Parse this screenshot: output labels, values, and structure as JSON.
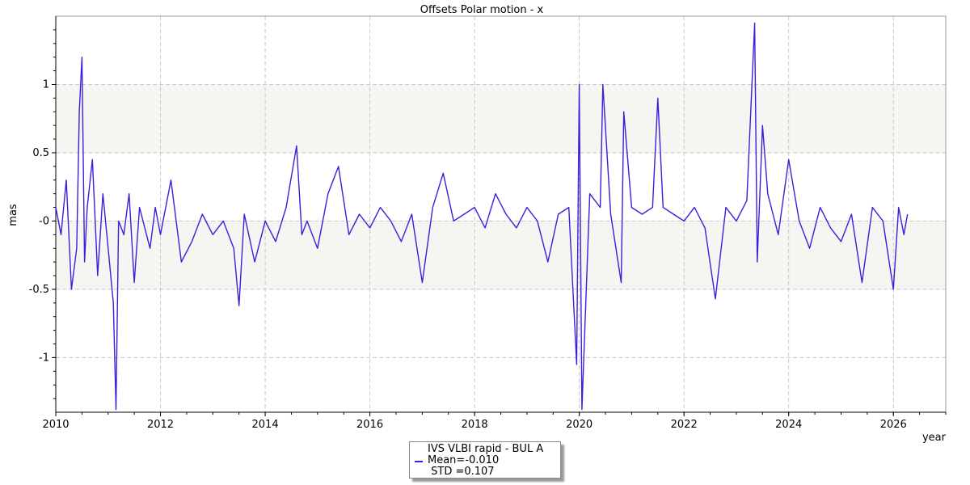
{
  "chart_data": {
    "type": "line",
    "title": "Offsets Polar motion - x",
    "xlabel": "year",
    "ylabel": "mas",
    "xlim": [
      2010,
      2027
    ],
    "ylim": [
      -1.4,
      1.5
    ],
    "x_ticks": [
      2010,
      2012,
      2014,
      2016,
      2018,
      2020,
      2022,
      2024,
      2026
    ],
    "x_tick_labels": [
      "2010",
      "2012",
      "2014",
      "2016",
      "2018",
      "2020",
      "2022",
      "2024",
      "2026"
    ],
    "y_ticks": [
      -1,
      -0.5,
      0,
      0.5,
      1
    ],
    "y_tick_labels": [
      "-1",
      "-0.5",
      "-0",
      "0.5",
      "1"
    ],
    "band_ranges": [
      [
        0.5,
        1.0
      ],
      [
        -0.5,
        0.0
      ]
    ],
    "band_color": "#f5f5f2",
    "grid": true,
    "legend_position": "bottom-center",
    "series": [
      {
        "name": "IVS VLBI rapid - BUL A",
        "color": "#3a1fdc",
        "mean_label": "Mean=-0.010",
        "std_label": " STD =0.107",
        "x": [
          2010.0,
          2010.1,
          2010.2,
          2010.3,
          2010.4,
          2010.45,
          2010.5,
          2010.55,
          2010.6,
          2010.7,
          2010.8,
          2010.9,
          2011.0,
          2011.1,
          2011.15,
          2011.2,
          2011.3,
          2011.4,
          2011.5,
          2011.6,
          2011.7,
          2011.8,
          2011.9,
          2012.0,
          2012.2,
          2012.4,
          2012.6,
          2012.8,
          2013.0,
          2013.2,
          2013.4,
          2013.5,
          2013.6,
          2013.8,
          2014.0,
          2014.2,
          2014.4,
          2014.6,
          2014.7,
          2014.8,
          2015.0,
          2015.2,
          2015.4,
          2015.6,
          2015.8,
          2016.0,
          2016.2,
          2016.4,
          2016.6,
          2016.8,
          2017.0,
          2017.2,
          2017.4,
          2017.6,
          2017.8,
          2018.0,
          2018.2,
          2018.4,
          2018.6,
          2018.8,
          2019.0,
          2019.2,
          2019.4,
          2019.6,
          2019.8,
          2019.95,
          2020.0,
          2020.05,
          2020.2,
          2020.4,
          2020.45,
          2020.6,
          2020.8,
          2020.85,
          2021.0,
          2021.2,
          2021.4,
          2021.5,
          2021.6,
          2021.8,
          2022.0,
          2022.2,
          2022.4,
          2022.6,
          2022.8,
          2023.0,
          2023.2,
          2023.35,
          2023.4,
          2023.5,
          2023.6,
          2023.8,
          2024.0,
          2024.2,
          2024.4,
          2024.6,
          2024.8,
          2025.0,
          2025.2,
          2025.4,
          2025.6,
          2025.8,
          2026.0,
          2026.1,
          2026.2,
          2026.27
        ],
        "y": [
          0.1,
          -0.1,
          0.3,
          -0.5,
          -0.2,
          0.8,
          1.2,
          -0.3,
          0.1,
          0.45,
          -0.4,
          0.2,
          -0.2,
          -0.6,
          -1.38,
          0.0,
          -0.1,
          0.2,
          -0.45,
          0.1,
          -0.05,
          -0.2,
          0.1,
          -0.1,
          0.3,
          -0.3,
          -0.15,
          0.05,
          -0.1,
          0.0,
          -0.2,
          -0.62,
          0.05,
          -0.3,
          0.0,
          -0.15,
          0.1,
          0.55,
          -0.1,
          0.0,
          -0.2,
          0.2,
          0.4,
          -0.1,
          0.05,
          -0.05,
          0.1,
          0.0,
          -0.15,
          0.05,
          -0.45,
          0.1,
          0.35,
          0.0,
          0.05,
          0.1,
          -0.05,
          0.2,
          0.05,
          -0.05,
          0.1,
          0.0,
          -0.3,
          0.05,
          0.1,
          -1.05,
          1.0,
          -1.38,
          0.2,
          0.1,
          1.0,
          0.05,
          -0.45,
          0.8,
          0.1,
          0.05,
          0.1,
          0.9,
          0.1,
          0.05,
          0.0,
          0.1,
          -0.05,
          -0.57,
          0.1,
          0.0,
          0.15,
          1.45,
          -0.3,
          0.7,
          0.2,
          -0.1,
          0.45,
          0.0,
          -0.2,
          0.1,
          -0.05,
          -0.15,
          0.05,
          -0.45,
          0.1,
          0.0,
          -0.5,
          0.1,
          -0.1,
          0.05
        ]
      }
    ]
  }
}
